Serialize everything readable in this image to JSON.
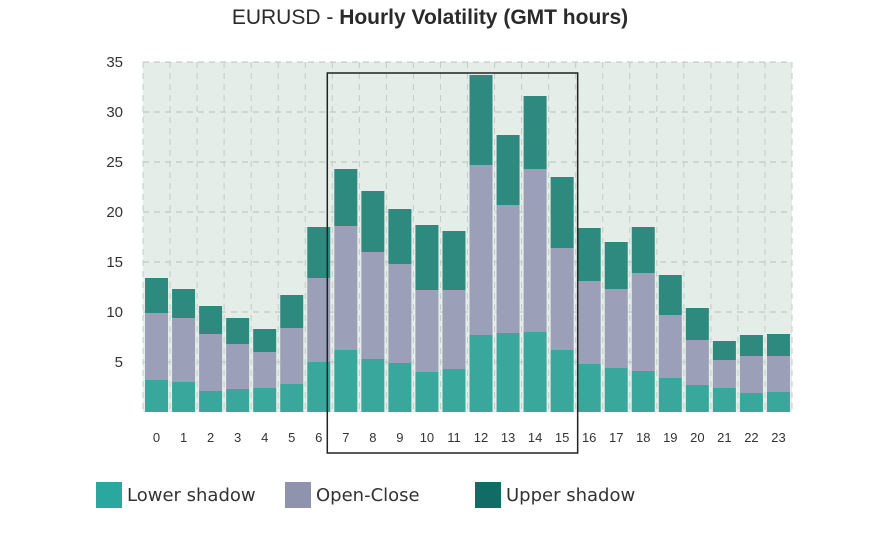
{
  "chart_data": {
    "type": "bar",
    "stacked": true,
    "title_prefix": "EURUSD - ",
    "title_main": "Hourly Volatility (GMT hours)",
    "xlabel": "",
    "ylabel": "",
    "ylim": [
      0,
      35
    ],
    "yticks": [
      5,
      10,
      15,
      20,
      25,
      30,
      35
    ],
    "grid": true,
    "legend_position": "bottom",
    "highlight_range": [
      "7",
      "15"
    ],
    "categories": [
      "0",
      "1",
      "2",
      "3",
      "4",
      "5",
      "6",
      "7",
      "8",
      "9",
      "10",
      "11",
      "12",
      "13",
      "14",
      "15",
      "16",
      "17",
      "18",
      "19",
      "20",
      "21",
      "22",
      "23"
    ],
    "series": [
      {
        "name": "Lower shadow",
        "color": "#3aa79c",
        "values": [
          3.2,
          3.0,
          2.1,
          2.3,
          2.4,
          2.8,
          5.0,
          6.2,
          5.3,
          4.9,
          4.0,
          4.3,
          7.7,
          7.9,
          8.0,
          6.2,
          4.8,
          4.4,
          4.1,
          3.4,
          2.7,
          2.4,
          1.9,
          2.0
        ]
      },
      {
        "name": "Open-Close",
        "color": "#9b9fb8",
        "values": [
          6.7,
          6.4,
          5.7,
          4.5,
          3.6,
          5.6,
          8.4,
          12.4,
          10.7,
          9.9,
          8.2,
          7.9,
          17.0,
          12.8,
          16.3,
          10.2,
          8.3,
          7.9,
          9.8,
          6.3,
          4.5,
          2.8,
          3.7,
          3.6
        ]
      },
      {
        "name": "Upper shadow",
        "color": "#2e8a7f",
        "values": [
          3.5,
          2.9,
          2.8,
          2.6,
          2.3,
          3.3,
          5.1,
          5.7,
          6.1,
          5.5,
          6.5,
          5.9,
          9.0,
          7.0,
          7.3,
          7.1,
          5.3,
          4.7,
          4.6,
          4.0,
          3.2,
          1.9,
          2.1,
          2.2
        ]
      }
    ]
  },
  "legend": [
    {
      "label": "Lower shadow",
      "color": "#2aa89f"
    },
    {
      "label": "Open-Close",
      "color": "#8f93ad"
    },
    {
      "label": "Upper shadow",
      "color": "#126c66"
    }
  ]
}
